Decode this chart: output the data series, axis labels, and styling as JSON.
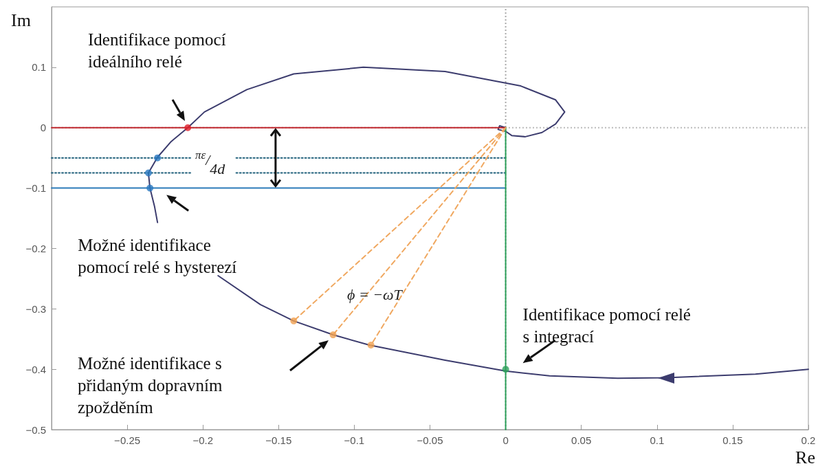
{
  "chart_data": {
    "type": "line",
    "xlabel": "Re",
    "ylabel": "Im",
    "xlim": [
      -0.3,
      0.2
    ],
    "ylim": [
      -0.5,
      0.2
    ],
    "xticks": [
      -0.25,
      -0.2,
      -0.15,
      -0.1,
      -0.05,
      0,
      0.05,
      0.1,
      0.15,
      0.2
    ],
    "yticks": [
      -0.5,
      -0.4,
      -0.3,
      -0.2,
      -0.1,
      0,
      0.1
    ],
    "grid": false,
    "marker": "none",
    "line_style": "solid",
    "ref_lines": [
      {
        "axis": "x",
        "value": 0,
        "color": "#aaaaaa",
        "line_style": "dotted"
      },
      {
        "axis": "y",
        "value": 0,
        "color": "#bbbbbb",
        "line_style": "dotted"
      }
    ],
    "series": [
      {
        "color": "#3c3c6e",
        "x": [
          0.2,
          0.165,
          0.106,
          0.074,
          0.029,
          0,
          -0.04,
          -0.09,
          -0.114,
          -0.14,
          -0.162,
          -0.19,
          -0.21,
          -0.23,
          -0.232,
          -0.235,
          -0.236,
          -0.23,
          -0.221,
          -0.21,
          -0.199,
          -0.171,
          -0.14,
          -0.094,
          -0.04,
          0.01,
          0.033,
          0.039,
          0.033,
          0.024,
          0.013,
          0.004,
          0,
          -0.005,
          -0.004,
          0
        ],
        "values": [
          -0.4,
          -0.408,
          -0.414,
          -0.415,
          -0.411,
          -0.403,
          -0.385,
          -0.36,
          -0.343,
          -0.32,
          -0.293,
          -0.245,
          null,
          -0.157,
          -0.13,
          -0.1,
          -0.075,
          -0.049,
          -0.023,
          0,
          0.026,
          0.063,
          0.089,
          0.1,
          0.093,
          0.069,
          0.046,
          0.026,
          0.006,
          -0.008,
          -0.015,
          -0.013,
          -0.006,
          -0.003,
          0.003,
          0
        ]
      },
      {
        "color": "#c0272d",
        "x": [
          -0.3,
          0
        ],
        "values": [
          0,
          0
        ]
      },
      {
        "color": "#2b7bb9",
        "x": [
          -0.3,
          0
        ],
        "values": [
          -0.1,
          -0.1
        ]
      },
      {
        "type": "line",
        "color": "#1f5f7a",
        "line_style": "dotted",
        "x": [
          -0.3,
          -0.208,
          -0.193,
          -0.178,
          0
        ],
        "values": [
          -0.05,
          -0.05,
          null,
          -0.05,
          -0.05
        ]
      },
      {
        "type": "line",
        "color": "#1f5f7a",
        "line_style": "dotted",
        "x": [
          -0.3,
          -0.208,
          -0.193,
          -0.178,
          0
        ],
        "values": [
          -0.075,
          -0.075,
          null,
          -0.075,
          -0.075
        ]
      },
      {
        "type": "line",
        "color": "#2ca05a",
        "x": [
          0,
          0
        ],
        "values": [
          0,
          -0.5
        ]
      },
      {
        "type": "line",
        "color": "#f0a860",
        "line_style": "dashed",
        "x": [
          0,
          -0.14,
          -0.07,
          0,
          -0.114,
          -0.057,
          0,
          -0.089
        ],
        "values": [
          0,
          -0.32,
          null,
          0,
          -0.343,
          null,
          0,
          -0.36
        ]
      },
      {
        "type": "scatter",
        "marker": "circle",
        "color": "#e0202a",
        "x": [
          -0.21
        ],
        "values": [
          0
        ]
      },
      {
        "type": "scatter",
        "marker": "circle",
        "color": "#2878c0",
        "x": [
          -0.23,
          -0.236,
          -0.235
        ],
        "values": [
          -0.05,
          -0.075,
          -0.1
        ]
      },
      {
        "type": "scatter",
        "marker": "circle",
        "color": "#f0a050",
        "x": [
          -0.14,
          -0.114,
          -0.089
        ],
        "values": [
          -0.32,
          -0.343,
          -0.36
        ]
      },
      {
        "type": "scatter",
        "marker": "circle",
        "color": "#2ca05a",
        "x": [
          0
        ],
        "values": [
          -0.4
        ]
      }
    ],
    "annotations": [
      "Identifikace pomocí\nideálního relé",
      {
        "text": "Možné identifikace\npomocí relé s hysterezí",
        "x": -0.235,
        "y": -0.1
      },
      "Možné identifikace s\npřidaným dopravním\nzpožděním",
      {
        "text": "Identifikace pomocí relé\ns integrací",
        "x": 0,
        "y": -0.4
      },
      "$^{πε}$/$_{4d}$",
      "ϕ = −ωT"
    ]
  }
}
